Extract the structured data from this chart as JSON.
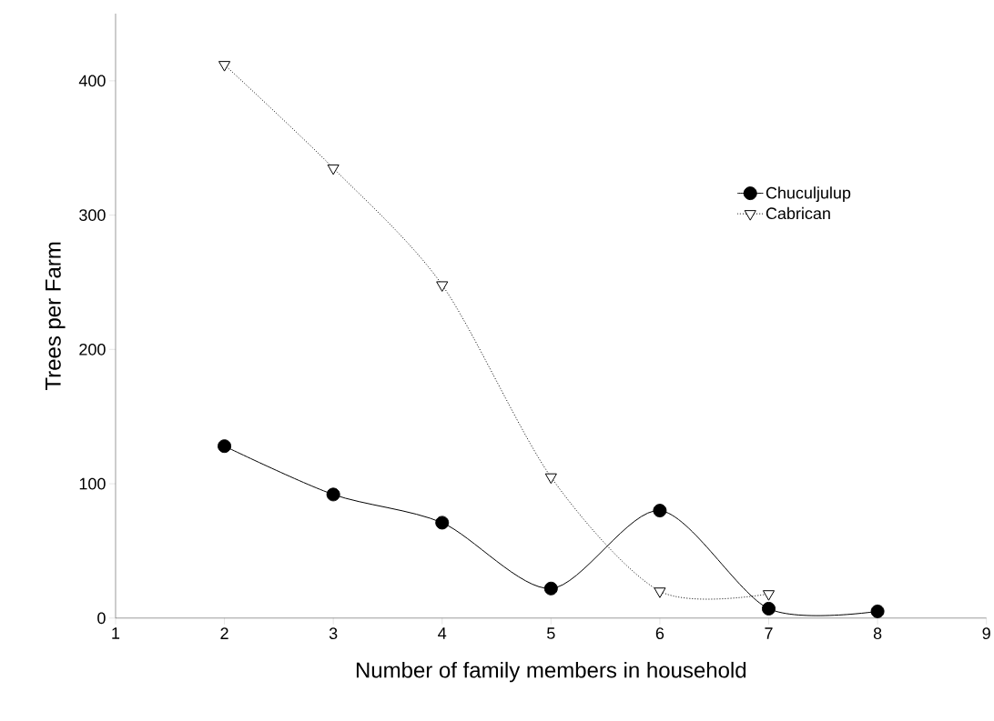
{
  "chart_data": {
    "type": "line",
    "xlabel": "Number of family members in household",
    "ylabel": "Trees per Farm",
    "xlim": [
      1,
      9
    ],
    "xticks": [
      1,
      2,
      3,
      4,
      5,
      6,
      7,
      8,
      9
    ],
    "ylim": [
      0,
      450
    ],
    "yticks": [
      0,
      100,
      200,
      300,
      400
    ],
    "grid": false,
    "legend": "top right",
    "series": [
      {
        "name": "Chuculjulup",
        "color": "#000000",
        "marker": "circle",
        "line_style": "solid",
        "x": [
          2,
          3,
          4,
          5,
          6,
          7,
          8
        ],
        "values": [
          128,
          92,
          71,
          22,
          80,
          7,
          5
        ]
      },
      {
        "name": "Cabrican",
        "color": "#000000",
        "marker": "triangle",
        "line_style": "dotted",
        "x": [
          2,
          3,
          4,
          5,
          6,
          7
        ],
        "values": [
          412,
          335,
          248,
          105,
          20,
          18
        ]
      }
    ]
  }
}
